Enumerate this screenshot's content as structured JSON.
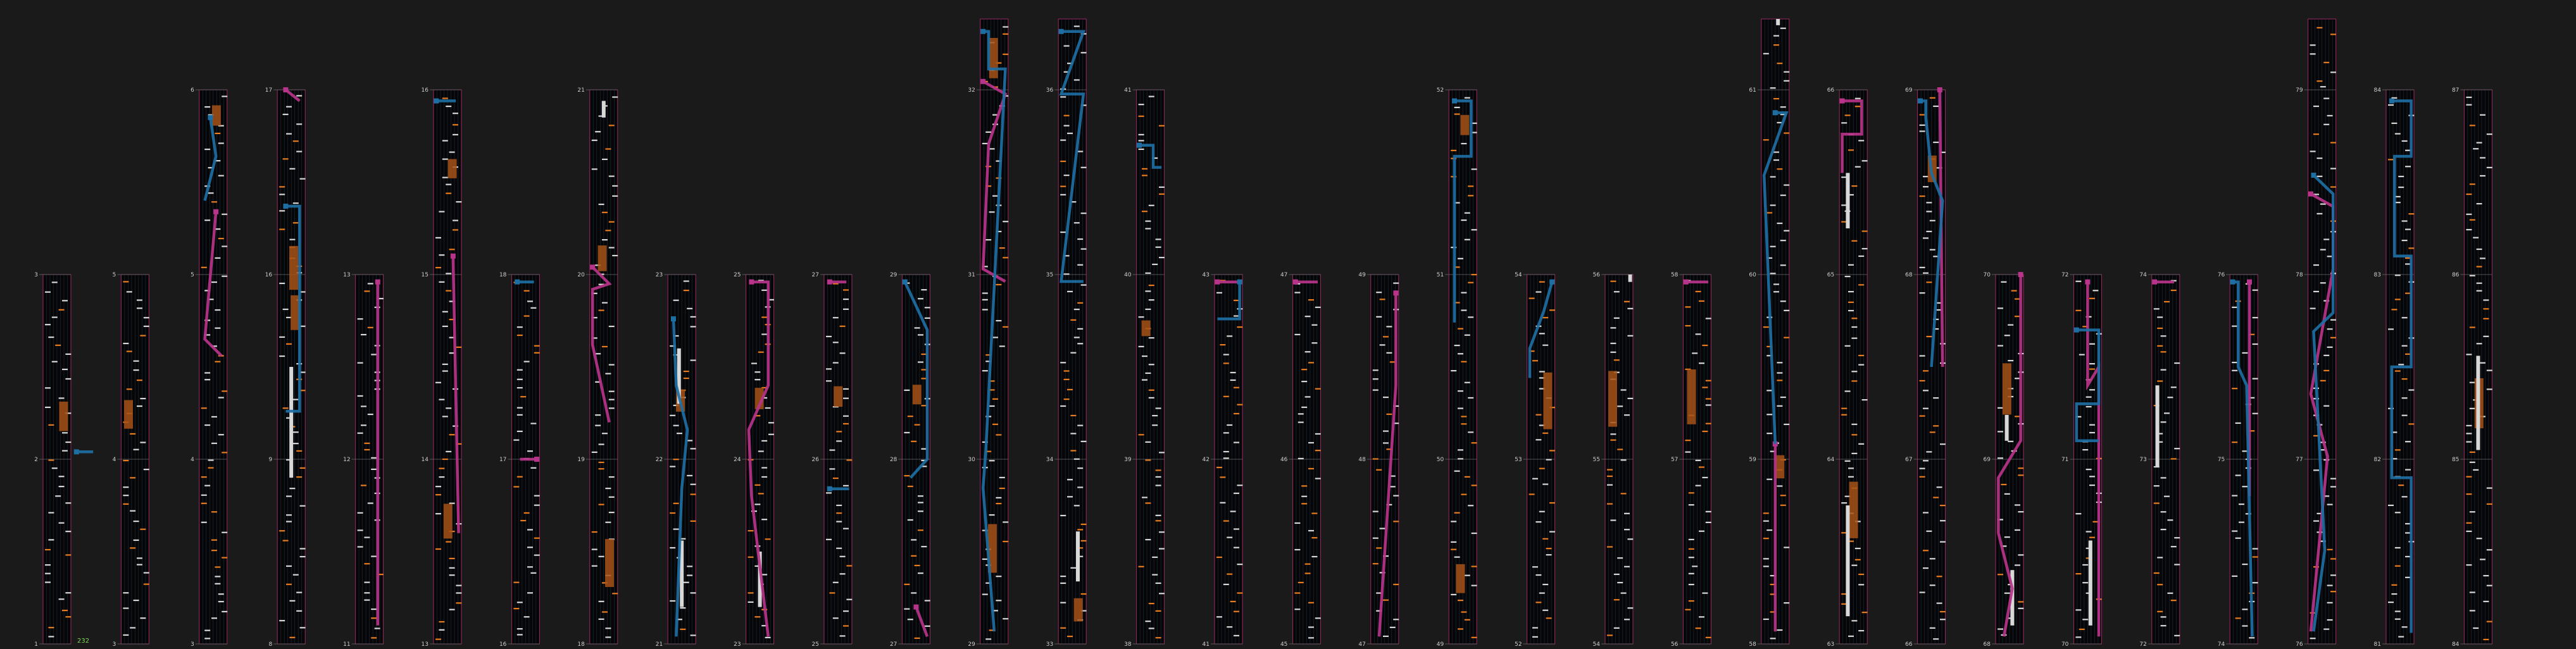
{
  "colors": {
    "background": "#1a1a1a",
    "column_bg": "#060606",
    "lane_line": "#1c2d4a",
    "border": "#9a2a66",
    "note_white": "#d8d8d8",
    "note_orange": "#e87c1e",
    "hold_orange": "#a65217",
    "slide_blue": "#1d6fa3",
    "slide_pink": "#b8338a",
    "combo_green": "#7ed957"
  },
  "combo_text": "232",
  "chart_data": {
    "type": "chart-scroll",
    "columns": [
      {
        "labels": [
          "3",
          "2",
          "1"
        ],
        "seed": 1,
        "blue": [
          [
            1.2,
            0.48
          ],
          [
            1.8,
            0.48
          ]
        ]
      },
      {
        "labels": [
          "5",
          "4",
          "3"
        ],
        "seed": 2
      },
      {
        "labels": [
          "6",
          "5",
          "4",
          "3"
        ],
        "seed": 3,
        "blue": [
          [
            0.4,
            0.05
          ],
          [
            0.6,
            0.12
          ],
          [
            0.2,
            0.2
          ]
        ],
        "pink": [
          [
            0.6,
            0.22
          ],
          [
            0.2,
            0.45
          ],
          [
            0.8,
            0.48
          ]
        ]
      },
      {
        "labels": [
          "17",
          "16",
          "9",
          "8"
        ],
        "seed": 4,
        "blue": [
          [
            0.3,
            0.21
          ],
          [
            0.8,
            0.21
          ],
          [
            0.8,
            0.58
          ],
          [
            0.3,
            0.58
          ]
        ],
        "pink": [
          [
            0.3,
            0.0
          ],
          [
            0.8,
            0.02
          ]
        ],
        "bars": [
          [
            0.5,
            0.5,
            0.7
          ]
        ]
      },
      {
        "labels": [
          "13",
          "12",
          "11"
        ],
        "seed": 5,
        "pink": [
          [
            0.8,
            0.02
          ],
          [
            0.8,
            0.95
          ]
        ]
      },
      {
        "labels": [
          "16",
          "15",
          "14",
          "13"
        ],
        "seed": 6,
        "blue": [
          [
            0.1,
            0.02
          ],
          [
            0.8,
            0.02
          ]
        ],
        "pink": [
          [
            0.7,
            0.3
          ],
          [
            0.9,
            0.8
          ]
        ]
      },
      {
        "labels": [
          "18",
          "17",
          "16"
        ],
        "seed": 7,
        "blue": [
          [
            0.2,
            0.02
          ],
          [
            0.8,
            0.02
          ]
        ],
        "pink": [
          [
            0.9,
            0.5
          ],
          [
            0.3,
            0.5
          ]
        ]
      },
      {
        "labels": [
          "21",
          "20",
          "19",
          "18"
        ],
        "seed": 8,
        "pink": [
          [
            0.1,
            0.32
          ],
          [
            0.7,
            0.35
          ],
          [
            0.1,
            0.36
          ],
          [
            0.1,
            0.46
          ],
          [
            0.7,
            0.6
          ]
        ],
        "bars": [
          [
            0.5,
            0.02,
            0.05
          ]
        ]
      },
      {
        "labels": [
          "23",
          "22",
          "21"
        ],
        "seed": 9,
        "blue": [
          [
            0.2,
            0.12
          ],
          [
            0.3,
            0.3
          ],
          [
            0.7,
            0.42
          ],
          [
            0.5,
            0.58
          ],
          [
            0.3,
            0.98
          ]
        ],
        "bars": [
          [
            0.4,
            0.2,
            0.35
          ],
          [
            0.5,
            0.72,
            0.9
          ]
        ]
      },
      {
        "labels": [
          "25",
          "24",
          "23"
        ],
        "seed": 10,
        "pink": [
          [
            0.2,
            0.02
          ],
          [
            0.8,
            0.02
          ],
          [
            0.8,
            0.3
          ],
          [
            0.1,
            0.42
          ],
          [
            0.2,
            0.6
          ],
          [
            0.8,
            0.98
          ]
        ],
        "bars": [
          [
            0.5,
            0.75,
            0.9
          ]
        ]
      },
      {
        "labels": [
          "27",
          "26",
          "25"
        ],
        "seed": 11,
        "pink": [
          [
            0.2,
            0.02
          ],
          [
            0.8,
            0.02
          ]
        ],
        "blue": [
          [
            0.2,
            0.58
          ],
          [
            0.9,
            0.58
          ]
        ]
      },
      {
        "labels": [
          "29",
          "28",
          "27"
        ],
        "seed": 12,
        "blue": [
          [
            0.1,
            0.02
          ],
          [
            0.9,
            0.15
          ],
          [
            0.9,
            0.5
          ],
          [
            0.3,
            0.55
          ]
        ],
        "pink": [
          [
            0.5,
            0.9
          ],
          [
            0.9,
            0.98
          ]
        ]
      },
      {
        "labels": [
          "33",
          "32",
          "31",
          "30",
          "29"
        ],
        "seed": 13,
        "blue": [
          [
            0.1,
            0.02
          ],
          [
            0.3,
            0.02
          ],
          [
            0.3,
            0.08
          ],
          [
            0.9,
            0.08
          ],
          [
            0.2,
            0.69
          ],
          [
            0.1,
            0.75
          ],
          [
            0.5,
            0.98
          ]
        ],
        "pink": [
          [
            0.1,
            0.1
          ],
          [
            0.9,
            0.12
          ],
          [
            0.3,
            0.2
          ],
          [
            0.1,
            0.4
          ],
          [
            0.9,
            0.42
          ]
        ]
      },
      {
        "labels": [
          "37",
          "36",
          "35",
          "34",
          "33"
        ],
        "seed": 14,
        "blue": [
          [
            0.1,
            0.02
          ],
          [
            0.9,
            0.02
          ],
          [
            0.1,
            0.12
          ],
          [
            0.9,
            0.12
          ],
          [
            0.1,
            0.42
          ],
          [
            0.9,
            0.42
          ]
        ],
        "bars": [
          [
            0.7,
            0.82,
            0.9
          ]
        ]
      },
      {
        "labels": [
          "41",
          "40",
          "39",
          "38"
        ],
        "seed": 15,
        "blue": [
          [
            0.1,
            0.1
          ],
          [
            0.6,
            0.1
          ],
          [
            0.6,
            0.14
          ],
          [
            0.9,
            0.14
          ]
        ]
      },
      {
        "labels": [
          "43",
          "42",
          "41"
        ],
        "seed": 16,
        "pink": [
          [
            0.1,
            0.02
          ],
          [
            0.9,
            0.02
          ]
        ],
        "blue": [
          [
            0.9,
            0.02
          ],
          [
            0.9,
            0.12
          ],
          [
            0.1,
            0.12
          ]
        ]
      },
      {
        "labels": [
          "47",
          "46",
          "45"
        ],
        "seed": 17,
        "pink": [
          [
            0.1,
            0.02
          ],
          [
            0.9,
            0.02
          ]
        ]
      },
      {
        "labels": [
          "49",
          "48",
          "47"
        ],
        "seed": 18,
        "pink": [
          [
            0.9,
            0.05
          ],
          [
            0.9,
            0.3
          ],
          [
            0.3,
            0.98
          ]
        ]
      },
      {
        "labels": [
          "52",
          "51",
          "50",
          "49"
        ],
        "seed": 19,
        "blue": [
          [
            0.2,
            0.02
          ],
          [
            0.8,
            0.02
          ],
          [
            0.8,
            0.12
          ],
          [
            0.2,
            0.12
          ],
          [
            0.2,
            0.42
          ]
        ]
      },
      {
        "labels": [
          "54",
          "53",
          "52"
        ],
        "seed": 20,
        "blue": [
          [
            0.9,
            0.02
          ],
          [
            0.6,
            0.1
          ],
          [
            0.1,
            0.2
          ],
          [
            0.1,
            0.28
          ]
        ]
      },
      {
        "labels": [
          "56",
          "55",
          "54"
        ],
        "seed": 21,
        "bars": [
          [
            0.9,
            0.0,
            0.02
          ]
        ]
      },
      {
        "labels": [
          "58",
          "57",
          "56"
        ],
        "seed": 22,
        "pink": [
          [
            0.1,
            0.02
          ],
          [
            0.9,
            0.02
          ]
        ]
      },
      {
        "labels": [
          "63",
          "62",
          "61",
          "60",
          "59",
          "58"
        ],
        "seed": 23,
        "blue": [
          [
            0.5,
            0.15
          ],
          [
            0.9,
            0.15
          ],
          [
            0.1,
            0.25
          ],
          [
            0.5,
            0.68
          ]
        ],
        "pink": [
          [
            0.5,
            0.68
          ],
          [
            0.5,
            0.98
          ]
        ],
        "bars": [
          [
            0.6,
            0.0,
            0.01
          ]
        ]
      },
      {
        "labels": [
          "66",
          "65",
          "64",
          "63"
        ],
        "seed": 24,
        "pink": [
          [
            0.1,
            0.02
          ],
          [
            0.8,
            0.02
          ],
          [
            0.8,
            0.08
          ],
          [
            0.1,
            0.08
          ],
          [
            0.1,
            0.15
          ]
        ],
        "bars": [
          [
            0.3,
            0.15,
            0.25
          ],
          [
            0.3,
            0.75,
            0.95
          ]
        ]
      },
      {
        "labels": [
          "69",
          "68",
          "67",
          "66"
        ],
        "seed": 25,
        "blue": [
          [
            0.1,
            0.02
          ],
          [
            0.3,
            0.02
          ],
          [
            0.3,
            0.05
          ],
          [
            0.5,
            0.15
          ],
          [
            0.9,
            0.2
          ],
          [
            0.5,
            0.5
          ]
        ],
        "pink": [
          [
            0.8,
            0.0
          ],
          [
            0.9,
            0.5
          ]
        ]
      },
      {
        "labels": [
          "70",
          "69",
          "68"
        ],
        "seed": 26,
        "pink": [
          [
            0.9,
            0.0
          ],
          [
            0.9,
            0.45
          ],
          [
            0.1,
            0.55
          ],
          [
            0.1,
            0.7
          ],
          [
            0.6,
            0.85
          ],
          [
            0.3,
            0.98
          ]
        ],
        "bars": [
          [
            0.4,
            0.38,
            0.45
          ],
          [
            0.6,
            0.8,
            0.95
          ]
        ]
      },
      {
        "labels": [
          "72",
          "71",
          "70"
        ],
        "seed": 27,
        "blue": [
          [
            0.1,
            0.15
          ],
          [
            0.9,
            0.15
          ],
          [
            0.9,
            0.35
          ],
          [
            0.1,
            0.35
          ],
          [
            0.1,
            0.45
          ],
          [
            0.9,
            0.45
          ]
        ],
        "pink": [
          [
            0.5,
            0.02
          ],
          [
            0.5,
            0.3
          ],
          [
            0.9,
            0.25
          ],
          [
            0.9,
            0.98
          ]
        ],
        "bars": [
          [
            0.6,
            0.72,
            0.95
          ]
        ]
      },
      {
        "labels": [
          "74",
          "73",
          "72"
        ],
        "seed": 28,
        "pink": [
          [
            0.1,
            0.02
          ],
          [
            0.8,
            0.02
          ]
        ],
        "bars": [
          [
            0.2,
            0.3,
            0.52
          ]
        ]
      },
      {
        "labels": [
          "76",
          "75",
          "74"
        ],
        "seed": 29,
        "blue": [
          [
            0.1,
            0.02
          ],
          [
            0.3,
            0.02
          ],
          [
            0.3,
            0.25
          ],
          [
            0.6,
            0.3
          ],
          [
            0.8,
            0.98
          ]
        ],
        "pink": [
          [
            0.7,
            0.02
          ],
          [
            0.7,
            0.6
          ]
        ]
      },
      {
        "labels": [
          "80",
          "79",
          "78",
          "77",
          "76"
        ],
        "seed": 30,
        "blue": [
          [
            0.2,
            0.25
          ],
          [
            0.9,
            0.28
          ],
          [
            0.9,
            0.47
          ],
          [
            0.2,
            0.5
          ],
          [
            0.6,
            0.85
          ],
          [
            0.2,
            0.98
          ]
        ],
        "pink": [
          [
            0.1,
            0.28
          ],
          [
            0.9,
            0.3
          ],
          [
            0.9,
            0.4
          ],
          [
            0.1,
            0.6
          ],
          [
            0.7,
            0.7
          ],
          [
            0.1,
            0.98
          ]
        ]
      },
      {
        "labels": [
          "84",
          "83",
          "82",
          "81"
        ],
        "seed": 31,
        "blue": [
          [
            0.2,
            0.02
          ],
          [
            0.9,
            0.02
          ],
          [
            0.9,
            0.12
          ],
          [
            0.3,
            0.12
          ],
          [
            0.3,
            0.3
          ],
          [
            0.9,
            0.3
          ],
          [
            0.9,
            0.5
          ],
          [
            0.2,
            0.5
          ],
          [
            0.2,
            0.7
          ],
          [
            0.9,
            0.7
          ],
          [
            0.9,
            0.98
          ]
        ]
      },
      {
        "labels": [
          "87",
          "86",
          "85",
          "84"
        ],
        "seed": 32,
        "bars": [
          [
            0.5,
            0.48,
            0.65
          ]
        ]
      }
    ]
  }
}
